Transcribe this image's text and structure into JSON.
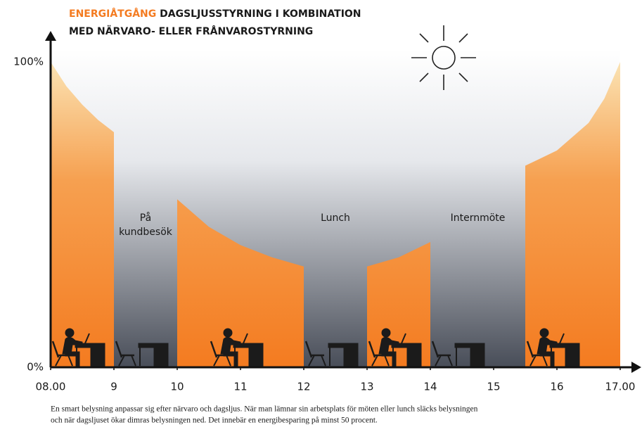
{
  "chart_data": {
    "type": "area",
    "title_highlight": "ENERGIÅTGÅNG",
    "title_line1": "DAGSLJUSSTYRNING I KOMBINATION",
    "title_line2": "MED NÄRVARO- ELLER FRÅNVAROSTYRNING",
    "x": [
      8,
      8.25,
      8.5,
      8.75,
      9,
      9.5,
      10,
      10.5,
      11,
      11.5,
      12,
      12.5,
      13,
      13.5,
      14,
      14.75,
      15.5,
      16,
      16.5,
      16.75,
      17
    ],
    "series": [
      {
        "color": "#f47b20",
        "values": [
          100,
          92,
          86,
          81,
          77,
          null,
          55,
          46,
          40,
          36,
          33,
          null,
          33,
          36,
          41,
          null,
          66,
          71,
          80,
          88,
          100
        ]
      }
    ],
    "annotations": [
      [
        "På",
        "kundbesök"
      ],
      [
        "Lunch"
      ],
      [
        "Internmöte"
      ]
    ],
    "xlim": [
      8,
      17.25
    ],
    "xticks": [
      {
        "value": 8,
        "label": "08.00"
      },
      9,
      10,
      11,
      12,
      13,
      14,
      15,
      16,
      {
        "value": 17,
        "label": "17.00"
      }
    ],
    "ylim": [
      0,
      110
    ],
    "yticks": [
      {
        "value": 0,
        "label": "0%"
      },
      {
        "value": 100,
        "label": "100%"
      }
    ],
    "caption": [
      "En smart belysning anpassar sig efter närvaro och dagsljus. När man lämnar sin arbetsplats för möten eller lunch släcks belysningen",
      "och när dagsljuset ökar dimras belysningen ned. Det innebär en energibesparing på minst 50 procent."
    ]
  }
}
